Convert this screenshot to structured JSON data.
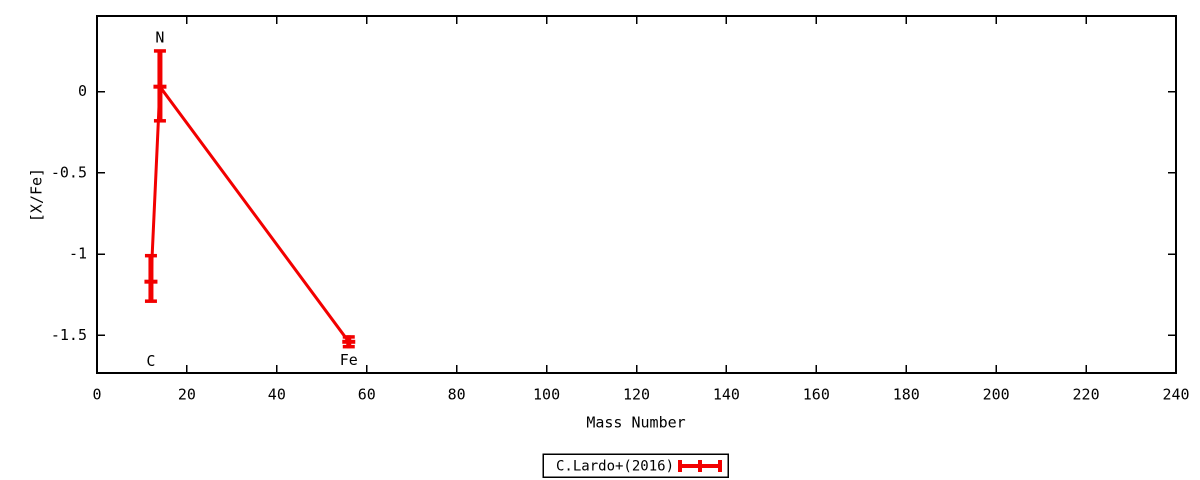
{
  "chart_data": {
    "type": "line",
    "subtype": "linespoints-with-yerrorbars",
    "title": "",
    "xlabel": "Mass Number",
    "ylabel": "[X/Fe]",
    "xlim": [
      0,
      240
    ],
    "ylim": [
      -1.732,
      0.465
    ],
    "xticks": [
      0,
      20,
      40,
      60,
      80,
      100,
      120,
      140,
      160,
      180,
      200,
      220,
      240
    ],
    "xtick_labels": [
      "0",
      "20",
      "40",
      "60",
      "80",
      "100",
      "120",
      "140",
      "160",
      "180",
      "200",
      "220",
      "240"
    ],
    "yticks": [
      0,
      -0.5,
      -1,
      -1.5
    ],
    "ytick_labels": [
      "0",
      "-0.5",
      "-1",
      "-1.5"
    ],
    "grid": "off",
    "border": "on",
    "tick_style": "inward-mirrored",
    "colors": {
      "series": "#f20000",
      "foreground": "#000000",
      "background": "#ffffff"
    },
    "legend": {
      "label": "C.Lardo+(2016)",
      "position": "below-center",
      "boxed": true,
      "sample": "errorbar-line"
    },
    "series": [
      {
        "name": "C.Lardo+(2016)",
        "color": "#f20000",
        "points": [
          {
            "element": "C",
            "x": 12,
            "y": -1.17,
            "y_low": -1.29,
            "y_high": -1.01
          },
          {
            "element": "N",
            "x": 14,
            "y": 0.03,
            "y_low": -0.18,
            "y_high": 0.25
          },
          {
            "element": "Fe",
            "x": 56,
            "y": -1.54,
            "y_low": -1.57,
            "y_high": -1.51
          }
        ]
      }
    ],
    "point_labels": [
      {
        "text": "N",
        "x": 14,
        "y": 0.33
      },
      {
        "text": "C",
        "x": 12,
        "y": -1.66
      },
      {
        "text": "Fe",
        "x": 56,
        "y": -1.655
      }
    ]
  }
}
